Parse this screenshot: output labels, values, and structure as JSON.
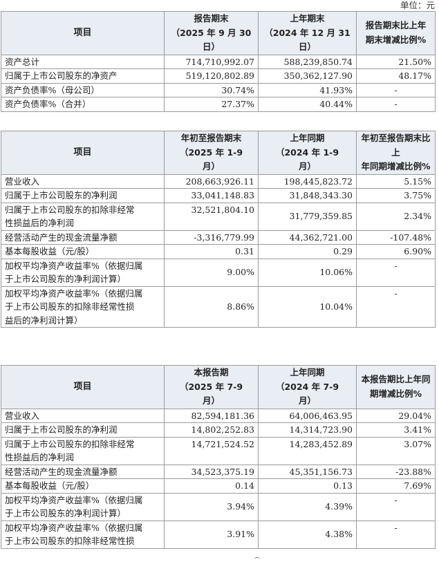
{
  "unit_label": "单位：元",
  "table1": {
    "headers": [
      "项目",
      "报告期末\n（2025 年 9 月 30\n日）",
      "上年期末\n（2024 年 12 月 31\n日）",
      "报告期末比上年\n期末增减比例%"
    ],
    "rows": [
      [
        "资产总计",
        "714,710,992.07",
        "588,239,850.74",
        "21.50%"
      ],
      [
        "归属于上市公司股东的净资产",
        "519,120,802.89",
        "350,362,127.90",
        "48.17%"
      ],
      [
        "资产负债率%（母公司）",
        "30.74%",
        "41.93%",
        "-"
      ],
      [
        "资产负债率%（合并）",
        "27.37%",
        "40.44%",
        "-"
      ]
    ]
  },
  "table2": {
    "headers": [
      "项目",
      "年初至报告期末\n（2025 年 1-9\n月）",
      "上年同期\n（2024 年 1-9\n月）",
      "年初至报告期末比上\n年同期增减比例%"
    ],
    "rows": [
      [
        "营业收入",
        "208,663,926.11",
        "198,445,823.72",
        "5.15%"
      ],
      [
        "归属于上市公司股东的净利润",
        "33,041,148.83",
        "31,848,343.30",
        "3.75%"
      ],
      [
        "归属于上市公司股东的扣除非经常\n性损益后的净利润",
        "32,521,804.10",
        "31,779,359.85",
        "2.34%"
      ],
      [
        "经营活动产生的现金流量净额",
        "-3,316,779.99",
        "44,362,721.00",
        "-107.48%"
      ],
      [
        "基本每股收益（元/股）",
        "0.31",
        "0.29",
        "6.90%"
      ],
      [
        "加权平均净资产收益率%（依据归属\n于上市公司股东的净利润计算）",
        "9.00%",
        "10.06%",
        "-"
      ],
      [
        "加权平均净资产收益率%（依据归属\n于上市公司股东的扣除非经常性损\n益后的净利润计算）",
        "8.86%",
        "10.04%",
        "-"
      ]
    ]
  },
  "table3": {
    "headers": [
      "项目",
      "本报告期\n（2025 年 7-9\n月）",
      "上年同期\n（2024 年 7-9\n月）",
      "本报告期比上年同\n期增减比例%"
    ],
    "rows": [
      [
        "营业收入",
        "82,594,181.36",
        "64,006,463.95",
        "29.04%"
      ],
      [
        "归属于上市公司股东的净利润",
        "14,802,252.83",
        "14,314,723.90",
        "3.41%"
      ],
      [
        "归属于上市公司股东的扣除非经常\n性损益后的净利润",
        "14,721,524.52",
        "14,283,452.89",
        "3.07%"
      ],
      [
        "经营活动产生的现金流量净额",
        "34,523,375.19",
        "45,351,156.73",
        "-23.88%"
      ],
      [
        "基本每股收益（元/股）",
        "0.14",
        "0.13",
        "7.69%"
      ],
      [
        "加权平均净资产收益率%（依据归属\n于上市公司股东的净利润计算）",
        "3.94%",
        "4.39%",
        "-"
      ],
      [
        "加权平均净资产收益率%（依据归属\n于上市公司股东的扣除非经常性损",
        "3.91%",
        "4.38%",
        "-"
      ]
    ]
  }
}
